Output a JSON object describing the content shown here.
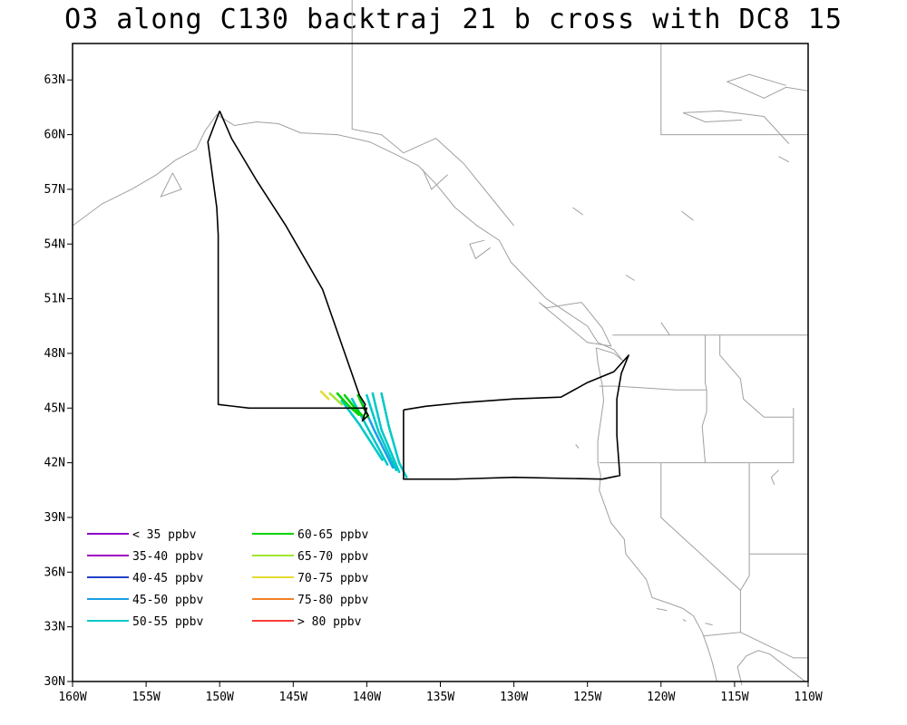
{
  "title": "O3 along C130 backtraj 21 b cross with DC8 15",
  "map": {
    "lon_range": [
      -160,
      -110
    ],
    "lat_range": [
      30,
      65
    ],
    "x_ticks": [
      {
        "lon": -160,
        "label": "160W"
      },
      {
        "lon": -155,
        "label": "155W"
      },
      {
        "lon": -150,
        "label": "150W"
      },
      {
        "lon": -145,
        "label": "145W"
      },
      {
        "lon": -140,
        "label": "140W"
      },
      {
        "lon": -135,
        "label": "135W"
      },
      {
        "lon": -130,
        "label": "130W"
      },
      {
        "lon": -125,
        "label": "125W"
      },
      {
        "lon": -120,
        "label": "120W"
      },
      {
        "lon": -115,
        "label": "115W"
      },
      {
        "lon": -110,
        "label": "110W"
      }
    ],
    "y_ticks": [
      {
        "lat": 30,
        "label": "30N"
      },
      {
        "lat": 33,
        "label": "33N"
      },
      {
        "lat": 36,
        "label": "36N"
      },
      {
        "lat": 39,
        "label": "39N"
      },
      {
        "lat": 42,
        "label": "42N"
      },
      {
        "lat": 45,
        "label": "45N"
      },
      {
        "lat": 48,
        "label": "48N"
      },
      {
        "lat": 51,
        "label": "51N"
      },
      {
        "lat": 54,
        "label": "54N"
      },
      {
        "lat": 57,
        "label": "57N"
      },
      {
        "lat": 60,
        "label": "60N"
      },
      {
        "lat": 63,
        "label": "63N"
      }
    ],
    "coast_color": "#a0a0a0",
    "track_color": "#000000"
  },
  "legend": [
    {
      "label": "< 35 ppbv",
      "color": "#8a00c8"
    },
    {
      "label": "35-40 ppbv",
      "color": "#a000c0"
    },
    {
      "label": "40-45 ppbv",
      "color": "#2040c8"
    },
    {
      "label": "45-50 ppbv",
      "color": "#1aa0e6"
    },
    {
      "label": "50-55 ppbv",
      "color": "#00c8c8"
    },
    {
      "label": "60-65 ppbv",
      "color": "#00d200"
    },
    {
      "label": "65-70 ppbv",
      "color": "#a0e632"
    },
    {
      "label": "70-75 ppbv",
      "color": "#e6dc32"
    },
    {
      "label": "75-80 ppbv",
      "color": "#f08228"
    },
    {
      "label": "> 80 ppbv",
      "color": "#fa3c3c"
    }
  ],
  "flight_track": [
    [
      -150.0,
      61.3
    ],
    [
      -150.8,
      59.6
    ],
    [
      -150.2,
      56.0
    ],
    [
      -150.1,
      54.5
    ],
    [
      -150.1,
      45.2
    ],
    [
      -148.0,
      45.0
    ],
    [
      -140.3,
      45.0
    ],
    [
      -140.0,
      45.0
    ],
    [
      -140.3,
      44.3
    ],
    [
      -139.9,
      44.6
    ],
    [
      -140.2,
      45.0
    ],
    [
      -140.1,
      45.2
    ],
    [
      -140.5,
      45.7
    ],
    [
      -143.0,
      51.5
    ],
    [
      -145.5,
      55.0
    ],
    [
      -147.5,
      57.5
    ],
    [
      -149.2,
      59.8
    ],
    [
      -150.0,
      61.3
    ]
  ],
  "flight_track_2": [
    [
      -137.5,
      44.9
    ],
    [
      -136.0,
      45.1
    ],
    [
      -133.5,
      45.3
    ],
    [
      -130.0,
      45.5
    ],
    [
      -126.8,
      45.6
    ],
    [
      -125.0,
      46.4
    ],
    [
      -123.2,
      47.0
    ],
    [
      -122.2,
      47.9
    ],
    [
      -122.7,
      46.9
    ],
    [
      -123.0,
      45.5
    ],
    [
      -123.0,
      43.5
    ],
    [
      -122.8,
      41.3
    ],
    [
      -124.0,
      41.1
    ],
    [
      -130.0,
      41.2
    ],
    [
      -134.0,
      41.1
    ],
    [
      -137.5,
      41.1
    ],
    [
      -137.5,
      44.9
    ]
  ],
  "trajectories": [
    {
      "color": "#00c8c8",
      "points": [
        [
          -139.0,
          45.8
        ],
        [
          -138.5,
          44.0
        ],
        [
          -137.8,
          42.0
        ],
        [
          -137.3,
          41.2
        ]
      ]
    },
    {
      "color": "#00c8c8",
      "points": [
        [
          -139.6,
          45.8
        ],
        [
          -139.0,
          43.8
        ],
        [
          -137.8,
          41.5
        ]
      ]
    },
    {
      "color": "#00c8c8",
      "points": [
        [
          -140.0,
          45.7
        ],
        [
          -139.2,
          43.7
        ],
        [
          -138.0,
          41.6
        ]
      ]
    },
    {
      "color": "#1aa0e6",
      "points": [
        [
          -140.5,
          45.6
        ],
        [
          -139.5,
          43.8
        ],
        [
          -138.2,
          41.7
        ]
      ]
    },
    {
      "color": "#00c8c8",
      "points": [
        [
          -141.0,
          45.5
        ],
        [
          -140.0,
          44.0
        ],
        [
          -138.6,
          41.9
        ]
      ]
    },
    {
      "color": "#00c8c8",
      "points": [
        [
          -141.7,
          45.4
        ],
        [
          -140.5,
          44.1
        ],
        [
          -138.9,
          42.1
        ]
      ]
    },
    {
      "color": "#00d200",
      "points": [
        [
          -141.5,
          45.7
        ],
        [
          -140.8,
          45.0
        ],
        [
          -140.2,
          44.5
        ]
      ]
    },
    {
      "color": "#00d200",
      "points": [
        [
          -142.0,
          45.8
        ],
        [
          -141.2,
          45.1
        ],
        [
          -140.5,
          44.6
        ]
      ]
    },
    {
      "color": "#00d200",
      "points": [
        [
          -140.6,
          45.7
        ],
        [
          -140.2,
          45.0
        ],
        [
          -139.9,
          44.5
        ]
      ]
    },
    {
      "color": "#a0e632",
      "points": [
        [
          -142.5,
          45.8
        ],
        [
          -141.7,
          45.2
        ]
      ]
    },
    {
      "color": "#e6dc32",
      "points": [
        [
          -143.1,
          45.9
        ],
        [
          -142.6,
          45.5
        ]
      ]
    }
  ]
}
